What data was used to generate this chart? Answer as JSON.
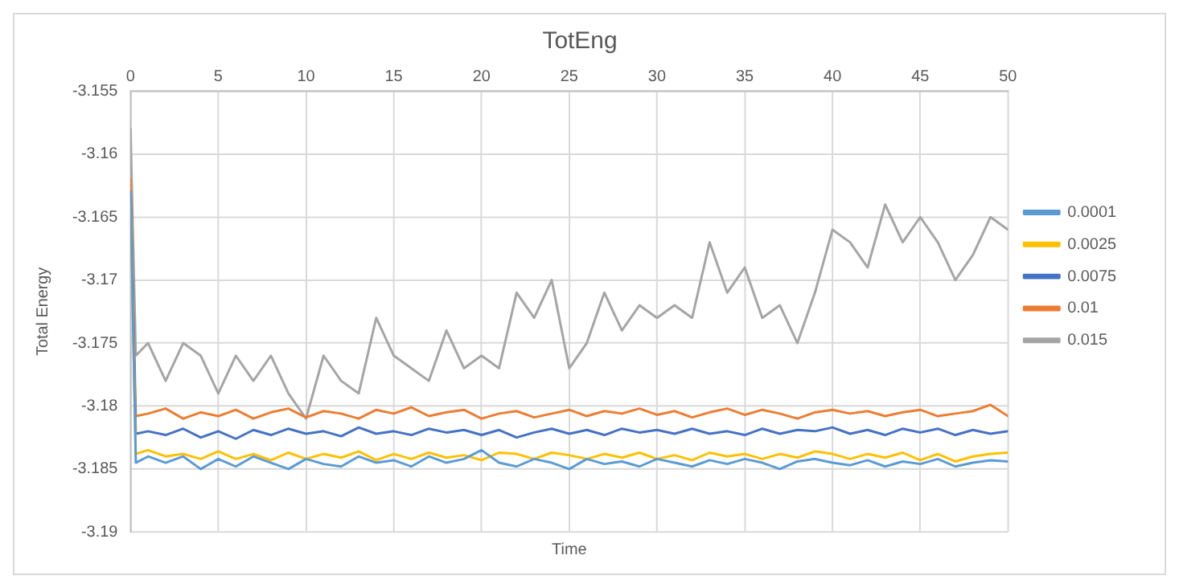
{
  "chart_data": {
    "type": "line",
    "title": "TotEng",
    "xlabel": "Time",
    "ylabel": "Total Energy",
    "x": [
      0,
      0.3,
      1,
      2,
      3,
      4,
      5,
      6,
      7,
      8,
      9,
      10,
      11,
      12,
      13,
      14,
      15,
      16,
      17,
      18,
      19,
      20,
      21,
      22,
      23,
      24,
      25,
      26,
      27,
      28,
      29,
      30,
      31,
      32,
      33,
      34,
      35,
      36,
      37,
      38,
      39,
      40,
      41,
      42,
      43,
      44,
      45,
      46,
      47,
      48,
      49,
      50
    ],
    "xlim": [
      0,
      50
    ],
    "xticks": [
      0,
      5,
      10,
      15,
      20,
      25,
      30,
      35,
      40,
      45,
      50
    ],
    "ylim": [
      -3.19,
      -3.155
    ],
    "yticks": [
      -3.19,
      -3.185,
      -3.18,
      -3.175,
      -3.17,
      -3.165,
      -3.16,
      -3.155
    ],
    "grid": true,
    "legend": "right",
    "marker": "none",
    "line_style": "solid",
    "series": [
      {
        "name": "0.0001",
        "color": "#5b9bd5",
        "values": [
          -3.163,
          -3.1845,
          -3.184,
          -3.1845,
          -3.184,
          -3.185,
          -3.1842,
          -3.1848,
          -3.184,
          -3.1845,
          -3.185,
          -3.1842,
          -3.1846,
          -3.1848,
          -3.184,
          -3.1845,
          -3.1843,
          -3.1848,
          -3.184,
          -3.1845,
          -3.1842,
          -3.1835,
          -3.1845,
          -3.1848,
          -3.1842,
          -3.1845,
          -3.185,
          -3.1842,
          -3.1846,
          -3.1844,
          -3.1848,
          -3.1842,
          -3.1845,
          -3.1848,
          -3.1843,
          -3.1846,
          -3.1842,
          -3.1845,
          -3.185,
          -3.1844,
          -3.1842,
          -3.1845,
          -3.1847,
          -3.1843,
          -3.1848,
          -3.1844,
          -3.1846,
          -3.1842,
          -3.1848,
          -3.1845,
          -3.1843,
          -3.1844
        ]
      },
      {
        "name": "0.0025",
        "color": "#ffc000",
        "values": [
          -3.164,
          -3.1838,
          -3.1835,
          -3.184,
          -3.1838,
          -3.1842,
          -3.1836,
          -3.1842,
          -3.1838,
          -3.1843,
          -3.1837,
          -3.1842,
          -3.1838,
          -3.1841,
          -3.1836,
          -3.1843,
          -3.1838,
          -3.1842,
          -3.1837,
          -3.1841,
          -3.1839,
          -3.1843,
          -3.1837,
          -3.1838,
          -3.1842,
          -3.1837,
          -3.1839,
          -3.1842,
          -3.1838,
          -3.1841,
          -3.1837,
          -3.1842,
          -3.1839,
          -3.1843,
          -3.1837,
          -3.184,
          -3.1838,
          -3.1842,
          -3.1838,
          -3.1841,
          -3.1836,
          -3.1838,
          -3.1842,
          -3.1838,
          -3.1841,
          -3.1837,
          -3.1843,
          -3.1838,
          -3.1844,
          -3.184,
          -3.1838,
          -3.1837
        ]
      },
      {
        "name": "0.0075",
        "color": "#4472c4",
        "values": [
          -3.163,
          -3.1822,
          -3.182,
          -3.1823,
          -3.1818,
          -3.1825,
          -3.182,
          -3.1826,
          -3.1819,
          -3.1823,
          -3.1818,
          -3.1822,
          -3.182,
          -3.1824,
          -3.1817,
          -3.1822,
          -3.182,
          -3.1823,
          -3.1818,
          -3.1821,
          -3.1819,
          -3.1823,
          -3.1819,
          -3.1825,
          -3.1821,
          -3.1818,
          -3.1822,
          -3.1819,
          -3.1823,
          -3.1818,
          -3.1821,
          -3.1819,
          -3.1822,
          -3.1818,
          -3.1822,
          -3.182,
          -3.1823,
          -3.1818,
          -3.1822,
          -3.1819,
          -3.182,
          -3.1817,
          -3.1822,
          -3.1819,
          -3.1823,
          -3.1818,
          -3.1821,
          -3.1818,
          -3.1823,
          -3.1819,
          -3.1822,
          -3.182
        ]
      },
      {
        "name": "0.01",
        "color": "#ed7d31",
        "values": [
          -3.162,
          -3.1808,
          -3.1806,
          -3.1802,
          -3.181,
          -3.1805,
          -3.1808,
          -3.1803,
          -3.181,
          -3.1805,
          -3.1802,
          -3.1809,
          -3.1804,
          -3.1806,
          -3.181,
          -3.1803,
          -3.1806,
          -3.1801,
          -3.1808,
          -3.1805,
          -3.1803,
          -3.181,
          -3.1806,
          -3.1804,
          -3.1809,
          -3.1806,
          -3.1803,
          -3.1808,
          -3.1804,
          -3.1806,
          -3.1802,
          -3.1807,
          -3.1804,
          -3.1809,
          -3.1805,
          -3.1802,
          -3.1807,
          -3.1803,
          -3.1806,
          -3.181,
          -3.1805,
          -3.1803,
          -3.1806,
          -3.1804,
          -3.1808,
          -3.1805,
          -3.1803,
          -3.1808,
          -3.1806,
          -3.1804,
          -3.1799,
          -3.1808
        ]
      },
      {
        "name": "0.015",
        "color": "#a5a5a5",
        "values": [
          -3.158,
          -3.176,
          -3.175,
          -3.178,
          -3.175,
          -3.176,
          -3.179,
          -3.176,
          -3.178,
          -3.176,
          -3.179,
          -3.181,
          -3.176,
          -3.178,
          -3.179,
          -3.173,
          -3.176,
          -3.177,
          -3.178,
          -3.174,
          -3.177,
          -3.176,
          -3.177,
          -3.171,
          -3.173,
          -3.17,
          -3.177,
          -3.175,
          -3.171,
          -3.174,
          -3.172,
          -3.173,
          -3.172,
          -3.173,
          -3.167,
          -3.171,
          -3.169,
          -3.173,
          -3.172,
          -3.175,
          -3.171,
          -3.166,
          -3.167,
          -3.169,
          -3.164,
          -3.167,
          -3.165,
          -3.167,
          -3.17,
          -3.168,
          -3.165,
          -3.166
        ]
      }
    ]
  }
}
